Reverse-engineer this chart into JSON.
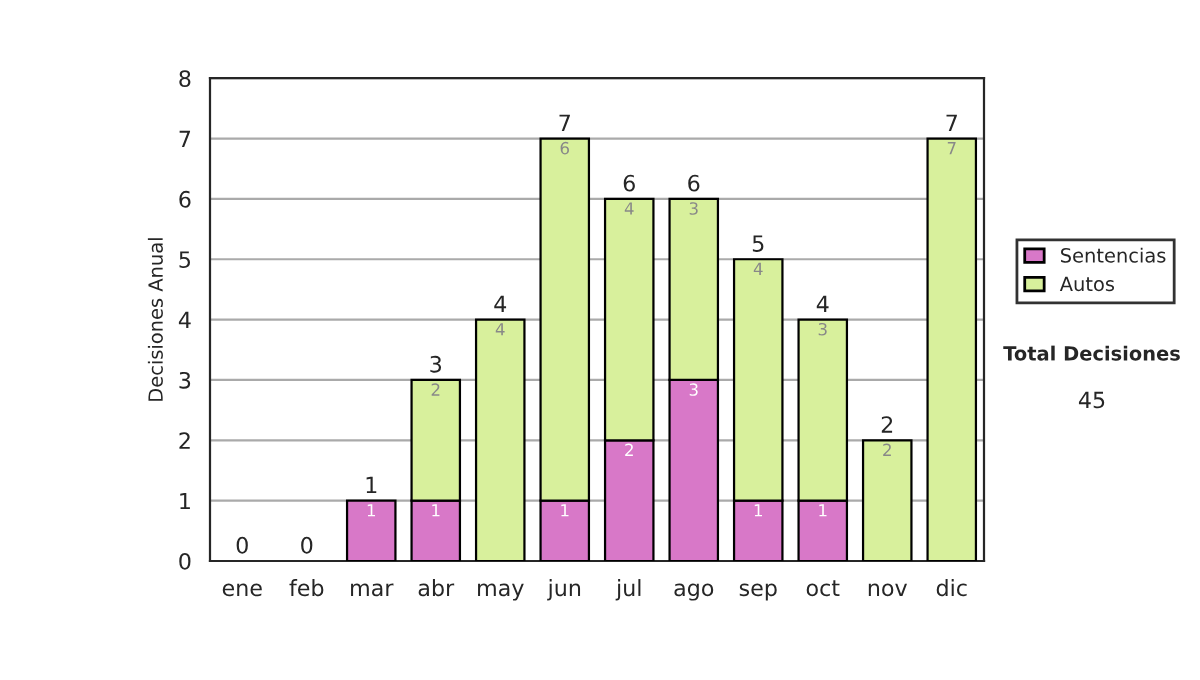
{
  "chart_data": {
    "type": "bar",
    "stacked": true,
    "ylabel": "Decisiones Anual",
    "categories": [
      "ene",
      "feb",
      "mar",
      "abr",
      "may",
      "jun",
      "jul",
      "ago",
      "sep",
      "oct",
      "nov",
      "dic"
    ],
    "series": [
      {
        "name": "Sentencias",
        "color": "#d878c8",
        "values": [
          0,
          0,
          1,
          1,
          0,
          1,
          2,
          3,
          1,
          1,
          0,
          0
        ],
        "value_labels": [
          null,
          null,
          "1",
          "1",
          null,
          "1",
          "2",
          "3",
          "1",
          "1",
          null,
          null
        ]
      },
      {
        "name": "Autos",
        "color": "#d8f09c",
        "values": [
          0,
          0,
          0,
          2,
          4,
          6,
          4,
          3,
          4,
          3,
          2,
          7
        ],
        "value_labels": [
          null,
          null,
          null,
          "2",
          "4",
          "6",
          "4",
          "3",
          "4",
          "3",
          "2",
          "7"
        ]
      }
    ],
    "totals": [
      "0",
      "0",
      "1",
      "3",
      "4",
      "7",
      "6",
      "6",
      "5",
      "4",
      "2",
      "7"
    ],
    "ylim": [
      0,
      8
    ],
    "yticks": [
      0,
      1,
      2,
      3,
      4,
      5,
      6,
      7,
      8
    ],
    "grid": "y",
    "legend": "right",
    "annotations": [
      "Total Decisiones",
      "45"
    ]
  }
}
